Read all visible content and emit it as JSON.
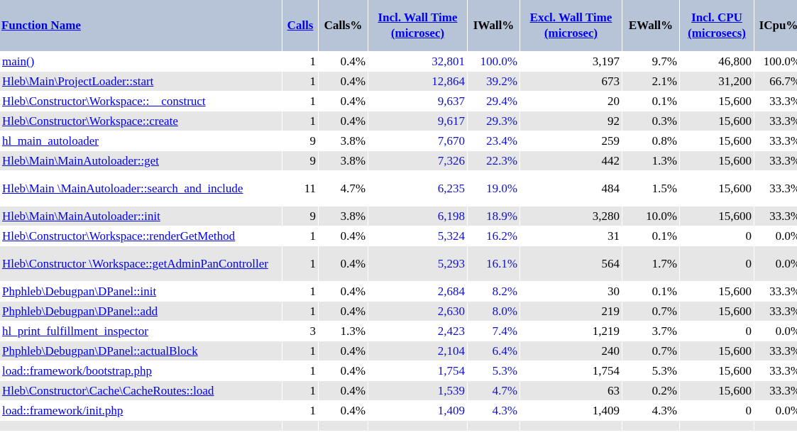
{
  "headers": {
    "function_name": "Function Name",
    "calls": "Calls",
    "calls_pct": "Calls%",
    "incl_wall": "Incl. Wall Time (microsec)",
    "iwall_pct": "IWall%",
    "excl_wall": "Excl. Wall Time (microsec)",
    "ewall_pct": "EWall%",
    "incl_cpu": "Incl. CPU (microsecs)",
    "icpu_pct": "ICpu%"
  },
  "rows": [
    {
      "fn": "main()",
      "calls": "1",
      "calls_pct": "0.4%",
      "incl_wall": "32,801",
      "iwall_pct": "100.0%",
      "excl_wall": "3,197",
      "ewall_pct": "9.7%",
      "incl_cpu": "46,800",
      "icpu_pct": "100.0%"
    },
    {
      "fn": "Hleb\\Main\\ProjectLoader::start",
      "calls": "1",
      "calls_pct": "0.4%",
      "incl_wall": "12,864",
      "iwall_pct": "39.2%",
      "excl_wall": "673",
      "ewall_pct": "2.1%",
      "incl_cpu": "31,200",
      "icpu_pct": "66.7%"
    },
    {
      "fn": "Hleb\\Constructor\\Workspace::__construct",
      "calls": "1",
      "calls_pct": "0.4%",
      "incl_wall": "9,637",
      "iwall_pct": "29.4%",
      "excl_wall": "20",
      "ewall_pct": "0.1%",
      "incl_cpu": "15,600",
      "icpu_pct": "33.3%"
    },
    {
      "fn": "Hleb\\Constructor\\Workspace::create",
      "calls": "1",
      "calls_pct": "0.4%",
      "incl_wall": "9,617",
      "iwall_pct": "29.3%",
      "excl_wall": "92",
      "ewall_pct": "0.3%",
      "incl_cpu": "15,600",
      "icpu_pct": "33.3%"
    },
    {
      "fn": "hl_main_autoloader",
      "calls": "9",
      "calls_pct": "3.8%",
      "incl_wall": "7,670",
      "iwall_pct": "23.4%",
      "excl_wall": "259",
      "ewall_pct": "0.8%",
      "incl_cpu": "15,600",
      "icpu_pct": "33.3%"
    },
    {
      "fn": "Hleb\\Main\\MainAutoloader::get",
      "calls": "9",
      "calls_pct": "3.8%",
      "incl_wall": "7,326",
      "iwall_pct": "22.3%",
      "excl_wall": "442",
      "ewall_pct": "1.3%",
      "incl_cpu": "15,600",
      "icpu_pct": "33.3%"
    },
    {
      "fn": "Hleb\\Main \\MainAutoloader::search_and_include",
      "calls": "11",
      "calls_pct": "4.7%",
      "incl_wall": "6,235",
      "iwall_pct": "19.0%",
      "excl_wall": "484",
      "ewall_pct": "1.5%",
      "incl_cpu": "15,600",
      "icpu_pct": "33.3%"
    },
    {
      "fn": "Hleb\\Main\\MainAutoloader::init",
      "calls": "9",
      "calls_pct": "3.8%",
      "incl_wall": "6,198",
      "iwall_pct": "18.9%",
      "excl_wall": "3,280",
      "ewall_pct": "10.0%",
      "incl_cpu": "15,600",
      "icpu_pct": "33.3%"
    },
    {
      "fn": "Hleb\\Constructor\\Workspace::renderGetMethod",
      "calls": "1",
      "calls_pct": "0.4%",
      "incl_wall": "5,324",
      "iwall_pct": "16.2%",
      "excl_wall": "31",
      "ewall_pct": "0.1%",
      "incl_cpu": "0",
      "icpu_pct": "0.0%"
    },
    {
      "fn": "Hleb\\Constructor \\Workspace::getAdminPanController",
      "calls": "1",
      "calls_pct": "0.4%",
      "incl_wall": "5,293",
      "iwall_pct": "16.1%",
      "excl_wall": "564",
      "ewall_pct": "1.7%",
      "incl_cpu": "0",
      "icpu_pct": "0.0%"
    },
    {
      "fn": "Phphleb\\Debugpan\\DPanel::init",
      "calls": "1",
      "calls_pct": "0.4%",
      "incl_wall": "2,684",
      "iwall_pct": "8.2%",
      "excl_wall": "30",
      "ewall_pct": "0.1%",
      "incl_cpu": "15,600",
      "icpu_pct": "33.3%"
    },
    {
      "fn": "Phphleb\\Debugpan\\DPanel::add",
      "calls": "1",
      "calls_pct": "0.4%",
      "incl_wall": "2,630",
      "iwall_pct": "8.0%",
      "excl_wall": "219",
      "ewall_pct": "0.7%",
      "incl_cpu": "15,600",
      "icpu_pct": "33.3%"
    },
    {
      "fn": "hl_print_fulfillment_inspector",
      "calls": "3",
      "calls_pct": "1.3%",
      "incl_wall": "2,423",
      "iwall_pct": "7.4%",
      "excl_wall": "1,219",
      "ewall_pct": "3.7%",
      "incl_cpu": "0",
      "icpu_pct": "0.0%"
    },
    {
      "fn": "Phphleb\\Debugpan\\DPanel::actualBlock",
      "calls": "1",
      "calls_pct": "0.4%",
      "incl_wall": "2,104",
      "iwall_pct": "6.4%",
      "excl_wall": "240",
      "ewall_pct": "0.7%",
      "incl_cpu": "15,600",
      "icpu_pct": "33.3%"
    },
    {
      "fn": "load::framework/bootstrap.php",
      "calls": "1",
      "calls_pct": "0.4%",
      "incl_wall": "1,754",
      "iwall_pct": "5.3%",
      "excl_wall": "1,754",
      "ewall_pct": "5.3%",
      "incl_cpu": "15,600",
      "icpu_pct": "33.3%"
    },
    {
      "fn": "Hleb\\Constructor\\Cache\\CacheRoutes::load",
      "calls": "1",
      "calls_pct": "0.4%",
      "incl_wall": "1,539",
      "iwall_pct": "4.7%",
      "excl_wall": "63",
      "ewall_pct": "0.2%",
      "incl_cpu": "15,600",
      "icpu_pct": "33.3%"
    },
    {
      "fn": "load::framework/init.php",
      "calls": "1",
      "calls_pct": "0.4%",
      "incl_wall": "1,409",
      "iwall_pct": "4.3%",
      "excl_wall": "1,409",
      "ewall_pct": "4.3%",
      "incl_cpu": "0",
      "icpu_pct": "0.0%"
    }
  ]
}
